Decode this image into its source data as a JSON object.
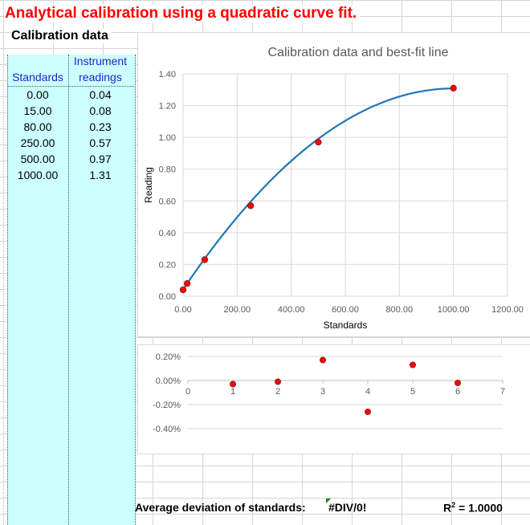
{
  "title": "Analytical calibration using a quadratic curve fit.",
  "subtitle": "Calibration data",
  "table": {
    "headers": {
      "col1": "Standards",
      "col2_line1": "Instrument",
      "col2_line2": "readings"
    },
    "rows": [
      {
        "standard": "0.00",
        "reading": "0.04"
      },
      {
        "standard": "15.00",
        "reading": "0.08"
      },
      {
        "standard": "80.00",
        "reading": "0.23"
      },
      {
        "standard": "250.00",
        "reading": "0.57"
      },
      {
        "standard": "500.00",
        "reading": "0.97"
      },
      {
        "standard": "1000.00",
        "reading": "1.31"
      }
    ]
  },
  "footer": {
    "avg_label": "Average deviation of standards:",
    "avg_value": "#DIV/0!",
    "r2_prefix": "R",
    "r2_sup": "2",
    "r2_value": " = 1.0000"
  },
  "chart_data": [
    {
      "type": "scatter",
      "title": "Calibration data and best-fit line",
      "xlabel": "Standards",
      "ylabel": "Reading",
      "xlim": [
        0,
        1200
      ],
      "ylim": [
        0,
        1.4
      ],
      "x_ticks": [
        "0.00",
        "200.00",
        "400.00",
        "600.00",
        "800.00",
        "1000.00",
        "1200.00"
      ],
      "y_ticks": [
        "0.00",
        "0.20",
        "0.40",
        "0.60",
        "0.80",
        "1.00",
        "1.20",
        "1.40"
      ],
      "grid": true,
      "series": [
        {
          "kind": "points",
          "color": "#ff0000",
          "x": [
            0,
            15,
            80,
            250,
            500,
            1000
          ],
          "y": [
            0.04,
            0.08,
            0.23,
            0.57,
            0.97,
            1.31
          ]
        },
        {
          "kind": "fit-line",
          "color": "#1f77b4",
          "quadratic": [
            0.0424,
            0.0025277,
            -1.262e-06
          ]
        }
      ]
    },
    {
      "type": "scatter",
      "title": "",
      "xlabel": "",
      "ylabel": "",
      "xlim": [
        0,
        7
      ],
      "ylim": [
        -0.4,
        0.2
      ],
      "x_ticks": [
        "0",
        "1",
        "2",
        "3",
        "4",
        "5",
        "6",
        "7"
      ],
      "y_ticks": [
        "0.20%",
        "0.00%",
        "-0.20%",
        "-0.40%"
      ],
      "grid": true,
      "series": [
        {
          "kind": "points",
          "color": "#ff0000",
          "x": [
            1,
            2,
            3,
            4,
            5,
            6
          ],
          "y": [
            -0.03,
            -0.01,
            0.17,
            -0.26,
            0.13,
            -0.02
          ]
        }
      ]
    }
  ]
}
